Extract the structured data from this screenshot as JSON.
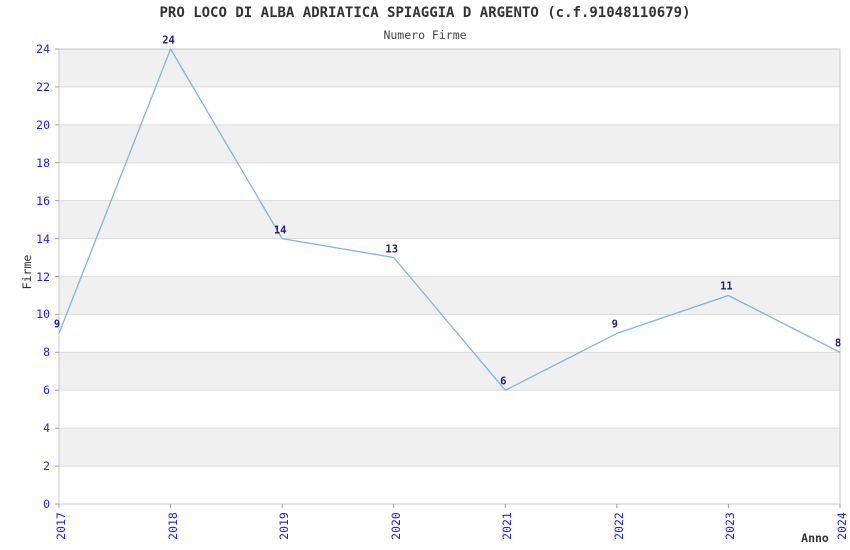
{
  "chart_data": {
    "type": "line",
    "title": "PRO LOCO DI ALBA ADRIATICA SPIAGGIA D ARGENTO (c.f.91048110679)",
    "subtitle": "Numero Firme",
    "xlabel": "Anno",
    "ylabel": "Firme",
    "categories": [
      "2017",
      "2018",
      "2019",
      "2020",
      "2021",
      "2022",
      "2023",
      "2024"
    ],
    "values": [
      9,
      24,
      14,
      13,
      6,
      9,
      11,
      8
    ],
    "ylim": [
      0,
      24
    ],
    "ytick_step": 2,
    "grid": "horizontal-bands",
    "legend": "none",
    "colors": {
      "line": "#7cb5ec",
      "tick_label": "#2222d5",
      "data_label": "#1f1f78",
      "band_fill": "#f0f0f0",
      "grid_line": "#dcdcdc",
      "axis_border": "#c9c9c9",
      "tick_mark": "#a0a0a0",
      "text": "#333333"
    }
  }
}
